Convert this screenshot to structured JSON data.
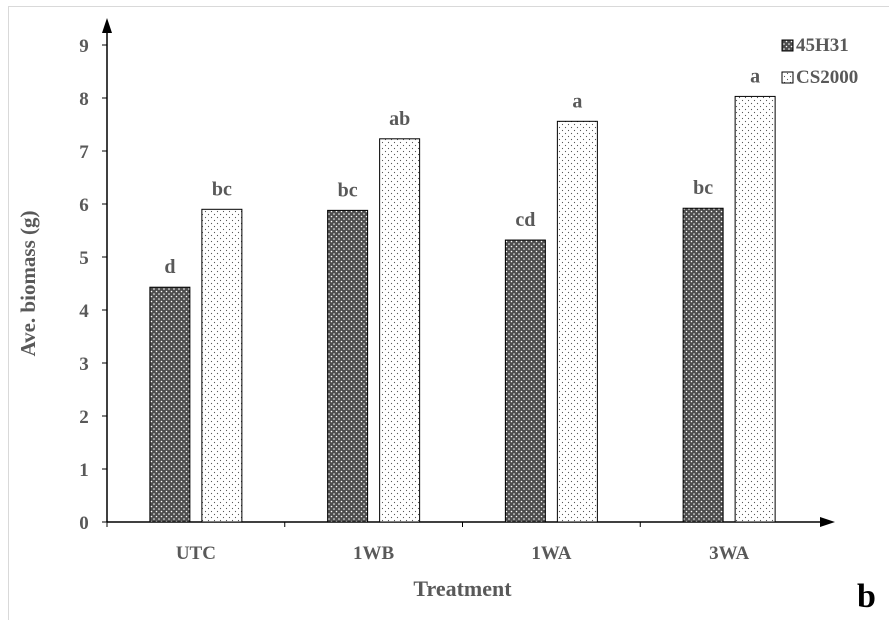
{
  "chart_data": {
    "type": "bar",
    "title": "",
    "xlabel": "Treatment",
    "ylabel": "Ave. biomass (g)",
    "ylim": [
      0,
      9
    ],
    "yticks": [
      0,
      1,
      2,
      3,
      4,
      5,
      6,
      7,
      8,
      9
    ],
    "categories": [
      "UTC",
      "1WB",
      "1WA",
      "3WA"
    ],
    "series": [
      {
        "name": "45H31",
        "values": [
          4.43,
          5.88,
          5.32,
          5.92
        ],
        "labels": [
          "d",
          "bc",
          "cd",
          "bc"
        ],
        "fill": "#4d4d4d",
        "dot": "#ffffff",
        "pattern": "dense-dots"
      },
      {
        "name": "CS2000",
        "values": [
          5.9,
          7.23,
          7.56,
          8.03
        ],
        "labels": [
          "bc",
          "ab",
          "a",
          "a"
        ],
        "fill": "#ffffff",
        "dot": "#555555",
        "pattern": "sparse-dots"
      }
    ],
    "legend_position": "top-right",
    "grid": false
  },
  "panel_label": "b"
}
